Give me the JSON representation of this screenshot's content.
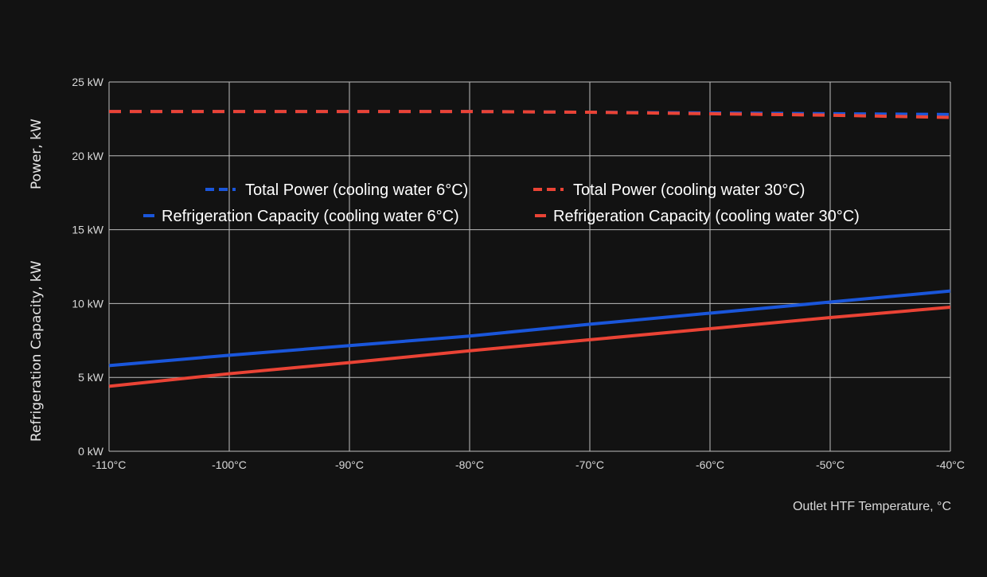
{
  "chart_data": {
    "type": "line",
    "title": "",
    "xlabel": "Outlet HTF Temperature, °C",
    "ylabels": [
      "Power, kW",
      "Refrigeration Capacity, kW"
    ],
    "xlim": [
      -110,
      -40
    ],
    "ylim": [
      0,
      25
    ],
    "x_ticks": [
      "-110°C",
      "-100°C",
      "-90°C",
      "-80°C",
      "-70°C",
      "-60°C",
      "-50°C",
      "-40°C"
    ],
    "y_ticks": [
      "0 kW",
      "5 kW",
      "10 kW",
      "15 kW",
      "20 kW",
      "25 kW"
    ],
    "grid": true,
    "legend_position": "inside-top-center",
    "x": [
      -110,
      -100,
      -90,
      -80,
      -70,
      -60,
      -50,
      -40
    ],
    "series": [
      {
        "name": "Total Power (cooling water 6°C)",
        "color": "#1a56db",
        "style": "dashed",
        "values": [
          23.0,
          23.0,
          23.0,
          23.0,
          22.95,
          22.9,
          22.85,
          22.8
        ]
      },
      {
        "name": "Total Power (cooling water 30°C)",
        "color": "#ea4335",
        "style": "dashed",
        "values": [
          23.0,
          23.0,
          23.0,
          23.0,
          22.95,
          22.85,
          22.75,
          22.6
        ]
      },
      {
        "name": "Refrigeration Capacity (cooling water 6°C)",
        "color": "#1a56db",
        "style": "solid",
        "values": [
          5.8,
          6.5,
          7.15,
          7.8,
          8.6,
          9.35,
          10.1,
          10.85
        ]
      },
      {
        "name": "Refrigeration Capacity (cooling water 30°C)",
        "color": "#ea4335",
        "style": "solid",
        "values": [
          4.4,
          5.25,
          6.0,
          6.8,
          7.55,
          8.3,
          9.05,
          9.75
        ]
      }
    ]
  }
}
